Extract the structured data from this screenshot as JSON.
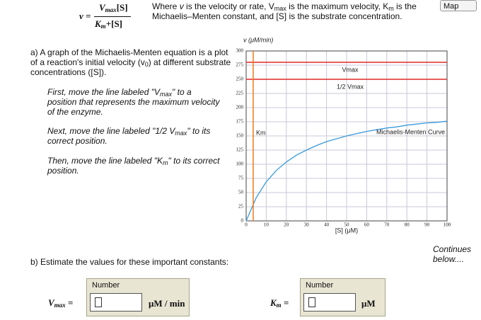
{
  "formula": {
    "lhs": "v",
    "eq": "=",
    "num_v": "V",
    "num_sub": "max",
    "num_s": "[S]",
    "den_k": "K",
    "den_sub": "m",
    "den_plus": "+",
    "den_s": "[S]"
  },
  "intro": [
    "Where ",
    "v",
    " is the velocity or rate, V",
    "max",
    " is the maximum velocity, K",
    "m",
    " is the Michaelis–Menten constant, and [S] is the substrate concentration."
  ],
  "map_button": "Map",
  "part_a": {
    "text": [
      "a) A graph of the Michaelis-Menten equation is a plot of a reaction's initial velocity (v",
      "0",
      ") at different substrate concentrations ([S])."
    ],
    "step1": [
      "First, move the line labeled \"V",
      "max",
      "\" to a position that represents the maximum velocity of the enzyme."
    ],
    "step2": [
      "Next, move the line labeled \"1/2 V",
      "max",
      "\" to its correct position."
    ],
    "step3": [
      "Then, move the line labeled \"K",
      "m",
      "\" to its correct position."
    ]
  },
  "chart_data": {
    "type": "line",
    "y_label": "v (μM/min)",
    "x_label": "[S] (μM)",
    "x": [
      0,
      5,
      10,
      15,
      20,
      25,
      30,
      35,
      40,
      45,
      50,
      55,
      60,
      65,
      70,
      75,
      80,
      85,
      90,
      95,
      100
    ],
    "series": [
      {
        "name": "Michaelis-Menten Curve",
        "color": "#3a9ad9",
        "values": [
          0,
          41,
          69,
          89,
          104,
          116,
          125,
          133,
          140,
          145,
          150,
          154,
          158,
          161,
          164,
          166,
          169,
          171,
          173,
          174,
          176
        ]
      }
    ],
    "guides": [
      {
        "label": "Vmax",
        "value": 280,
        "color": "#e02828",
        "orientation": "horizontal"
      },
      {
        "label": "1/2 Vmax",
        "value": 250,
        "color": "#e02828",
        "orientation": "horizontal"
      },
      {
        "label": "Km",
        "value": 3.5,
        "color": "#f07818",
        "orientation": "vertical"
      }
    ],
    "xlim": [
      0,
      100
    ],
    "ylim": [
      0,
      300
    ],
    "xticks": [
      0,
      10,
      20,
      30,
      40,
      50,
      60,
      70,
      80,
      90,
      100
    ],
    "yticks": [
      0,
      25,
      50,
      75,
      100,
      125,
      150,
      175,
      200,
      225,
      250,
      275,
      300
    ],
    "grid": true
  },
  "part_b": {
    "prompt": "b) Estimate the values for these important constants:",
    "continues": "Continues below....",
    "inputs": [
      {
        "symbol": "V",
        "sub": "max",
        "eq": "=",
        "field_label": "Number",
        "unit": "μM / min"
      },
      {
        "symbol": "K",
        "sub": "m",
        "eq": "=",
        "field_label": "Number",
        "unit": "μM"
      }
    ]
  }
}
